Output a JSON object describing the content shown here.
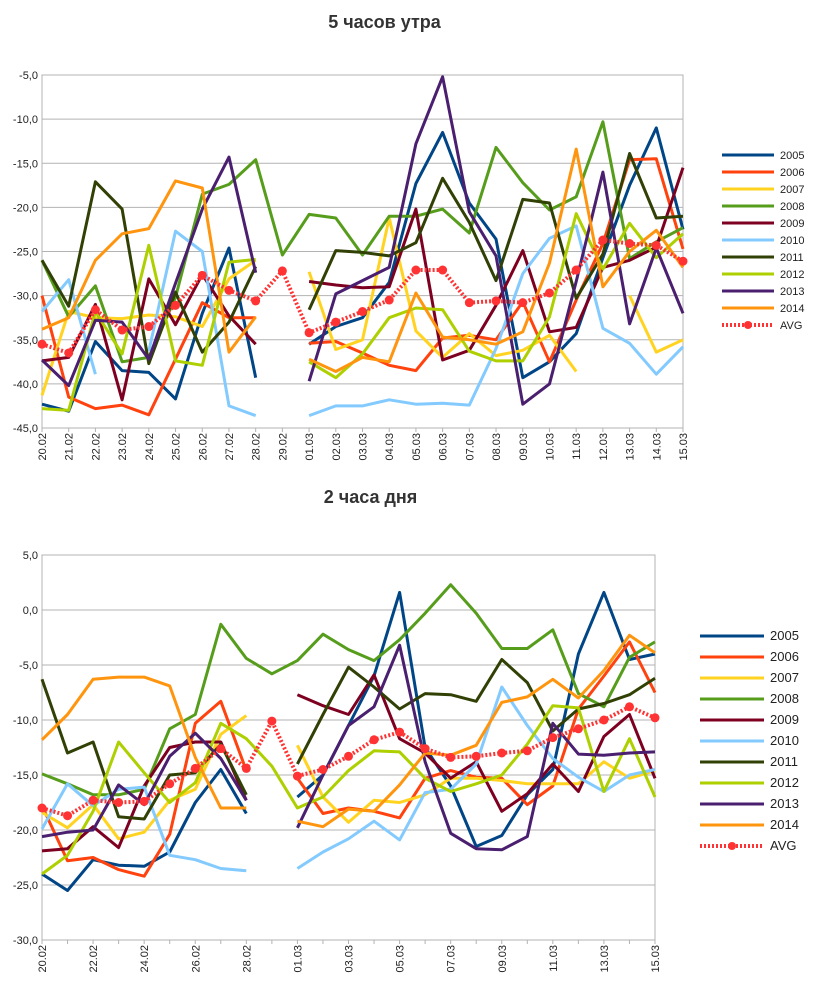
{
  "colors": {
    "2005": "#004586",
    "2006": "#ff420e",
    "2007": "#ffd320",
    "2008": "#579d1c",
    "2009": "#7e0021",
    "2010": "#83caff",
    "2011": "#314004",
    "2012": "#aecf00",
    "2013": "#4b1f6f",
    "2014": "#ff950e",
    "AVG": "#ff3333"
  },
  "chart_data": [
    {
      "type": "line",
      "title": "5 часов утра",
      "xlabel": "",
      "ylabel": "",
      "ylim": [
        -45,
        -5
      ],
      "y_ticks": [
        "-5,0",
        "-10,0",
        "-15,0",
        "-20,0",
        "-25,0",
        "-30,0",
        "-35,0",
        "-40,0",
        "-45,0"
      ],
      "x_ticks": [
        "20.02",
        "21.02",
        "22.02",
        "23.02",
        "24.02",
        "25.02",
        "26.02",
        "27.02",
        "28.02",
        "29.02",
        "01.03",
        "02.03",
        "03.03",
        "04.03",
        "05.03",
        "06.03",
        "07.03",
        "08.03",
        "09.03",
        "10.03",
        "11.03",
        "12.03",
        "13.03",
        "14.03",
        "15.03"
      ],
      "grid": true,
      "legend": "right",
      "series": [
        {
          "name": "2005",
          "values": [
            -42.3,
            -43.1,
            -35.2,
            -38.5,
            -38.7,
            -41.7,
            -32.0,
            -24.6,
            -39.3,
            null,
            -35.5,
            -33.5,
            -32.5,
            -28.5,
            -17.3,
            -11.5,
            -19.5,
            -23.6,
            -39.3,
            -37.5,
            -34.3,
            -25.7,
            -17.5,
            -11.0,
            -22.5
          ]
        },
        {
          "name": "2006",
          "values": [
            -30.0,
            -41.5,
            -42.8,
            -42.4,
            -43.5,
            -37.2,
            -30.8,
            -32.5,
            -32.5,
            null,
            -35.4,
            -35.2,
            -36.5,
            -37.9,
            -38.5,
            -34.8,
            -34.5,
            -35.0,
            -30.7,
            -37.5,
            -30.5,
            -24.1,
            -14.6,
            -14.5,
            -24.7
          ]
        },
        {
          "name": "2007",
          "values": [
            -41.3,
            -31.8,
            -32.5,
            -32.6,
            -32.2,
            -32.4,
            -33.5,
            -28.1,
            -26.0,
            null,
            -27.3,
            -36.1,
            -35.0,
            -21.2,
            -34.0,
            -37.0,
            -34.3,
            -36.8,
            -36.2,
            -34.5,
            -38.6,
            null,
            -30.0,
            -36.4,
            -35.0
          ]
        },
        {
          "name": "2008",
          "values": [
            -26.0,
            -32.4,
            -28.9,
            -37.5,
            -37.0,
            -30.2,
            -18.5,
            -17.4,
            -14.6,
            -25.4,
            -20.8,
            -21.2,
            -25.4,
            -21.0,
            -21.0,
            -20.2,
            -22.9,
            -13.2,
            -17.2,
            -20.3,
            -18.8,
            -10.3,
            -25.8,
            -23.9,
            -22.3
          ]
        },
        {
          "name": "2009",
          "values": [
            -37.4,
            -37.0,
            -31.0,
            -41.8,
            -28.1,
            -33.3,
            -27.6,
            -32.3,
            -35.5,
            null,
            -28.4,
            -28.8,
            -29.1,
            -29.0,
            -20.2,
            -37.3,
            -36.2,
            -31.1,
            -24.9,
            -34.1,
            -33.6,
            -26.8,
            -26.0,
            -24.5,
            -15.5
          ]
        },
        {
          "name": "2010",
          "values": [
            -31.8,
            -28.2,
            -38.9,
            null,
            -36.3,
            -22.7,
            -25.0,
            -42.5,
            -43.6,
            null,
            -43.6,
            -42.5,
            -42.5,
            -41.8,
            -42.3,
            -42.2,
            -42.4,
            -36.0,
            -27.5,
            -23.5,
            -22.1,
            -33.7,
            -35.4,
            -38.9,
            -35.8
          ]
        },
        {
          "name": "2011",
          "values": [
            -26.0,
            -31.2,
            -17.1,
            -20.2,
            -37.7,
            -29.6,
            -36.4,
            -33.0,
            -26.7,
            null,
            -31.6,
            -24.9,
            -25.1,
            -25.5,
            -24.0,
            -16.7,
            -21.7,
            -28.3,
            -19.1,
            -19.5,
            -30.3,
            -25.3,
            -13.9,
            -21.2,
            -21.0
          ]
        },
        {
          "name": "2012",
          "values": [
            -42.8,
            -43.0,
            -31.8,
            -36.6,
            -24.3,
            -37.4,
            -37.9,
            -26.2,
            -25.9,
            null,
            -37.5,
            -39.3,
            -36.6,
            -32.5,
            -31.4,
            -31.6,
            -36.3,
            -37.4,
            -37.4,
            -32.4,
            -20.7,
            -27.0,
            -21.8,
            -25.7,
            -23.0
          ]
        },
        {
          "name": "2013",
          "values": [
            -37.3,
            -40.2,
            -32.8,
            -33.0,
            -37.2,
            -28.6,
            -20.2,
            -14.3,
            -27.4,
            null,
            -39.7,
            -29.8,
            -28.3,
            -26.8,
            -12.8,
            -5.2,
            -20.5,
            -25.5,
            -42.3,
            -40.0,
            -28.4,
            -16.0,
            -33.2,
            -24.6,
            -32.0
          ]
        },
        {
          "name": "2014",
          "values": [
            -33.8,
            -32.5,
            -26.0,
            -23.0,
            -22.4,
            -17.0,
            -17.8,
            -36.4,
            -32.4,
            null,
            -37.2,
            -38.6,
            -37.0,
            -37.5,
            -29.7,
            -34.7,
            -35.0,
            -35.5,
            -34.1,
            -26.3,
            -13.4,
            -29.0,
            -25.0,
            -22.6,
            -26.8
          ]
        },
        {
          "name": "AVG",
          "values": [
            -35.5,
            -36.5,
            -31.6,
            -33.9,
            -33.5,
            -31.1,
            -27.7,
            -29.4,
            -30.6,
            -27.2,
            -34.2,
            -33.0,
            -31.8,
            -30.5,
            -27.1,
            -27.1,
            -30.8,
            -30.6,
            -30.8,
            -29.7,
            -27.1,
            -23.7,
            -24.1,
            -24.3,
            -26.1
          ]
        }
      ]
    },
    {
      "type": "line",
      "title": "2 часа дня",
      "xlabel": "",
      "ylabel": "",
      "ylim": [
        -30,
        5
      ],
      "y_ticks": [
        "5,0",
        "0,0",
        "-5,0",
        "-10,0",
        "-15,0",
        "-20,0",
        "-25,0",
        "-30,0"
      ],
      "x_ticks": [
        "20.02",
        "22.02",
        "24.02",
        "26.02",
        "28.02",
        "01.03",
        "03.03",
        "05.03",
        "07.03",
        "09.03",
        "11.03",
        "13.03",
        "15.03"
      ],
      "x_count": 25,
      "grid": true,
      "legend": "right",
      "series": [
        {
          "name": "2005",
          "values": [
            -24.0,
            -25.5,
            -22.7,
            -23.2,
            -23.3,
            -22.0,
            -17.5,
            -14.5,
            -18.5,
            null,
            -17.0,
            -15.0,
            -10.5,
            -6.0,
            1.6,
            -12.5,
            -16.0,
            -21.5,
            -20.5,
            -16.8,
            -14.5,
            -4.0,
            1.6,
            -4.5,
            -4.0
          ]
        },
        {
          "name": "2006",
          "values": [
            -17.8,
            -22.8,
            -22.5,
            -23.6,
            -24.2,
            -20.4,
            -10.3,
            -8.3,
            -14.6,
            null,
            -15.3,
            -18.5,
            -18.0,
            -18.3,
            -18.9,
            -15.3,
            -14.6,
            -15.2,
            -15.3,
            -17.7,
            -16.0,
            -9.0,
            -6.0,
            -2.9,
            -7.5
          ]
        },
        {
          "name": "2007",
          "values": [
            -18.4,
            -19.8,
            -17.7,
            -20.8,
            -20.2,
            -17.3,
            -16.3,
            -11.3,
            -9.6,
            null,
            -12.3,
            -17.0,
            -19.3,
            -17.3,
            -17.5,
            -16.8,
            -15.3,
            -15.3,
            -15.5,
            -15.8,
            -15.8,
            -15.8,
            -13.8,
            -15.3,
            -14.6
          ]
        },
        {
          "name": "2008",
          "values": [
            -14.9,
            -15.8,
            -16.8,
            -16.8,
            -16.3,
            -10.8,
            -9.5,
            -1.3,
            -4.4,
            -5.8,
            -4.6,
            -2.2,
            -3.6,
            -4.6,
            -2.7,
            -0.3,
            2.3,
            -0.3,
            -3.5,
            -3.5,
            -1.8,
            -7.6,
            -8.8,
            -4.3,
            -2.9
          ]
        },
        {
          "name": "2009",
          "values": [
            -21.9,
            -21.7,
            -19.7,
            -21.6,
            -16.0,
            -12.5,
            -12.0,
            -12.0,
            -17.3,
            null,
            -7.7,
            -8.7,
            -9.5,
            -5.9,
            -11.7,
            -13.0,
            -15.3,
            -13.8,
            -18.3,
            -16.7,
            -14.0,
            -16.5,
            -11.5,
            -9.5,
            -15.3
          ]
        },
        {
          "name": "2010",
          "values": [
            -19.9,
            -15.8,
            -17.8,
            -16.3,
            -16.1,
            -22.3,
            -22.7,
            -23.5,
            -23.7,
            null,
            -23.5,
            -22.0,
            -20.8,
            -19.2,
            -20.9,
            -16.6,
            -16.3,
            -14.0,
            -7.0,
            -10.5,
            -13.5,
            -15.2,
            -16.5,
            -15.0,
            -14.5
          ]
        },
        {
          "name": "2011",
          "values": [
            -6.3,
            -13.0,
            -12.0,
            -18.8,
            -19.0,
            -15.0,
            -14.8,
            -12.2,
            -16.8,
            null,
            -14.0,
            -9.5,
            -5.2,
            -7.0,
            -9.0,
            -7.6,
            -7.7,
            -8.3,
            -4.5,
            -6.6,
            -11.0,
            -9.0,
            -8.5,
            -7.7,
            -6.2
          ]
        },
        {
          "name": "2012",
          "values": [
            -24.0,
            -22.3,
            -18.3,
            -12.0,
            -14.8,
            -17.5,
            -15.7,
            -10.3,
            -11.7,
            -14.2,
            -18.0,
            -17.0,
            -14.6,
            -12.8,
            -12.9,
            -15.3,
            -16.5,
            -15.8,
            -15.0,
            -12.2,
            -8.7,
            -8.9,
            -16.5,
            -11.7,
            -17.0
          ]
        },
        {
          "name": "2013",
          "values": [
            -20.6,
            -20.2,
            -20.0,
            -15.9,
            -17.7,
            -13.3,
            -11.2,
            -13.5,
            -17.3,
            null,
            -19.8,
            -15.0,
            -10.5,
            -8.8,
            -3.2,
            -13.8,
            -20.3,
            -21.7,
            -21.8,
            -20.6,
            -10.3,
            -13.1,
            -13.2,
            -13.0,
            -12.9
          ]
        },
        {
          "name": "2014",
          "values": [
            -11.8,
            -9.5,
            -6.3,
            -6.1,
            -6.1,
            -6.9,
            -13.4,
            -18.0,
            -18.0,
            null,
            -19.2,
            -19.7,
            -18.1,
            -18.3,
            -15.9,
            -13.0,
            -13.2,
            -12.3,
            -8.4,
            -7.9,
            -6.3,
            -8.0,
            -5.5,
            -2.3,
            -3.9
          ]
        },
        {
          "name": "AVG",
          "values": [
            -18.0,
            -18.7,
            -17.3,
            -17.5,
            -17.4,
            -15.8,
            -14.4,
            -12.6,
            -14.4,
            -10.1,
            -15.1,
            -14.5,
            -13.3,
            -11.8,
            -11.1,
            -12.6,
            -13.4,
            -13.3,
            -13.0,
            -12.8,
            -11.6,
            -10.8,
            -10.0,
            -8.8,
            -9.8
          ]
        }
      ]
    }
  ]
}
